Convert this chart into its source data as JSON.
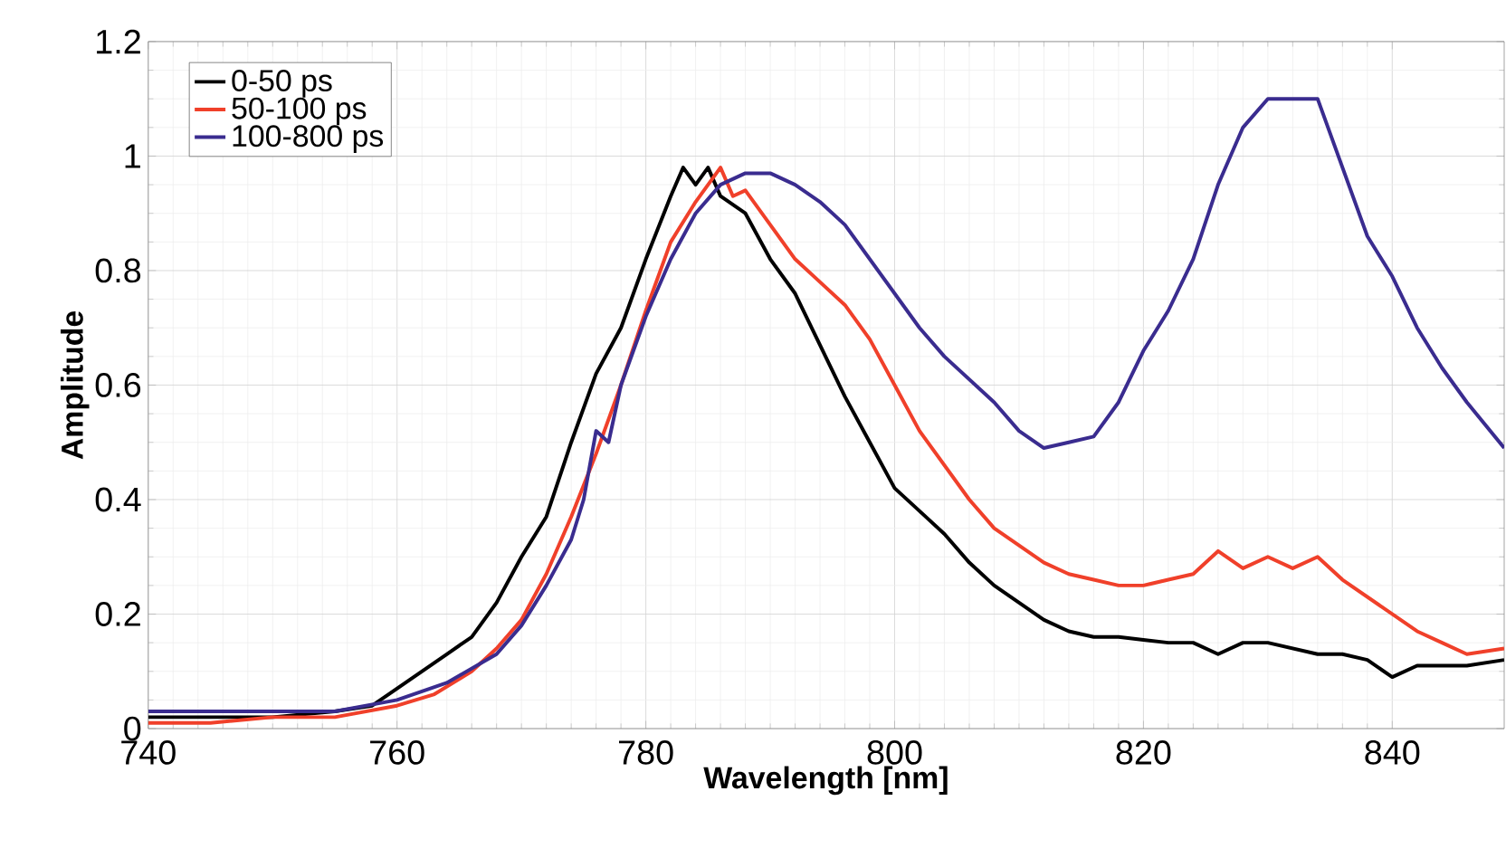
{
  "chart_data": {
    "type": "line",
    "xlabel": "Wavelength [nm]",
    "ylabel": "Amplitude",
    "xlim": [
      740,
      849
    ],
    "ylim": [
      0,
      1.2
    ],
    "xticks": [
      740,
      760,
      780,
      800,
      820,
      840
    ],
    "yticks": [
      0,
      0.2,
      0.4,
      0.6,
      0.8,
      1,
      1.2
    ],
    "grid": true,
    "legend": "top left",
    "marker": "none",
    "line_style": "solid",
    "series": [
      {
        "name": "0-50 ps",
        "color": "#000000",
        "x": [
          740,
          745,
          750,
          755,
          758,
          760,
          762,
          764,
          766,
          768,
          770,
          772,
          774,
          776,
          778,
          780,
          782,
          783,
          784,
          785,
          786,
          788,
          790,
          792,
          794,
          796,
          798,
          800,
          802,
          804,
          806,
          808,
          810,
          812,
          814,
          816,
          818,
          820,
          822,
          824,
          826,
          828,
          830,
          832,
          834,
          836,
          838,
          840,
          842,
          844,
          846,
          849
        ],
        "values": [
          0.02,
          0.02,
          0.02,
          0.03,
          0.04,
          0.07,
          0.1,
          0.13,
          0.16,
          0.22,
          0.3,
          0.37,
          0.5,
          0.62,
          0.7,
          0.82,
          0.93,
          0.98,
          0.95,
          0.98,
          0.93,
          0.9,
          0.82,
          0.76,
          0.67,
          0.58,
          0.5,
          0.42,
          0.38,
          0.34,
          0.29,
          0.25,
          0.22,
          0.19,
          0.17,
          0.16,
          0.16,
          0.155,
          0.15,
          0.15,
          0.13,
          0.15,
          0.15,
          0.14,
          0.13,
          0.13,
          0.12,
          0.09,
          0.11,
          0.11,
          0.11,
          0.12
        ]
      },
      {
        "name": "50-100 ps",
        "color": "#f0402a",
        "x": [
          740,
          745,
          750,
          755,
          760,
          763,
          766,
          768,
          770,
          772,
          774,
          776,
          778,
          780,
          782,
          784,
          786,
          787,
          788,
          790,
          792,
          794,
          796,
          798,
          800,
          802,
          804,
          806,
          808,
          810,
          812,
          814,
          816,
          818,
          820,
          822,
          824,
          826,
          828,
          830,
          832,
          834,
          836,
          838,
          840,
          842,
          844,
          846,
          849
        ],
        "values": [
          0.01,
          0.01,
          0.02,
          0.02,
          0.04,
          0.06,
          0.1,
          0.14,
          0.19,
          0.27,
          0.37,
          0.48,
          0.6,
          0.73,
          0.85,
          0.92,
          0.98,
          0.93,
          0.94,
          0.88,
          0.82,
          0.78,
          0.74,
          0.68,
          0.6,
          0.52,
          0.46,
          0.4,
          0.35,
          0.32,
          0.29,
          0.27,
          0.26,
          0.25,
          0.25,
          0.26,
          0.27,
          0.31,
          0.28,
          0.3,
          0.28,
          0.3,
          0.26,
          0.23,
          0.2,
          0.17,
          0.15,
          0.13,
          0.14
        ]
      },
      {
        "name": "100-800 ps",
        "color": "#3a2c8f",
        "x": [
          740,
          745,
          750,
          755,
          760,
          764,
          768,
          770,
          772,
          774,
          775,
          776,
          777,
          778,
          780,
          782,
          784,
          786,
          788,
          790,
          792,
          794,
          796,
          798,
          800,
          802,
          804,
          806,
          808,
          810,
          812,
          814,
          816,
          818,
          820,
          822,
          824,
          826,
          828,
          830,
          832,
          834,
          836,
          838,
          840,
          842,
          844,
          846,
          849
        ],
        "values": [
          0.03,
          0.03,
          0.03,
          0.03,
          0.05,
          0.08,
          0.13,
          0.18,
          0.25,
          0.33,
          0.4,
          0.52,
          0.5,
          0.6,
          0.72,
          0.82,
          0.9,
          0.95,
          0.97,
          0.97,
          0.95,
          0.92,
          0.88,
          0.82,
          0.76,
          0.7,
          0.65,
          0.61,
          0.57,
          0.52,
          0.49,
          0.5,
          0.51,
          0.57,
          0.66,
          0.73,
          0.82,
          0.95,
          1.05,
          1.1,
          1.1,
          1.1,
          0.98,
          0.86,
          0.79,
          0.7,
          0.63,
          0.57,
          0.49
        ]
      }
    ]
  }
}
